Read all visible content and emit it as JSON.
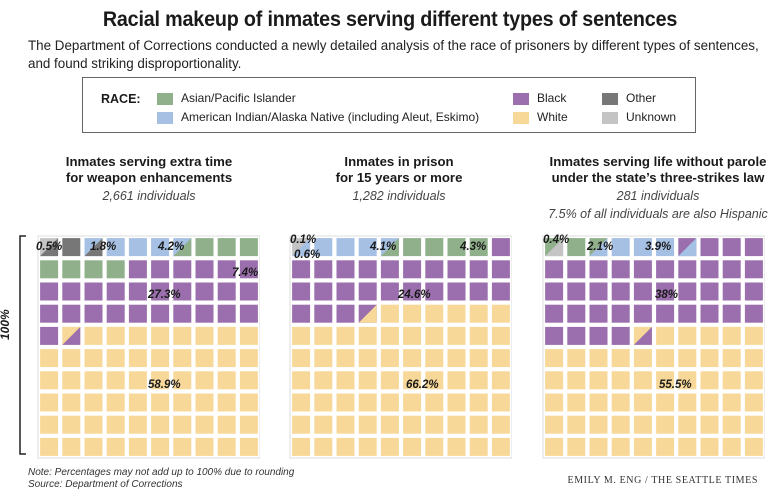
{
  "title": "Racial makeup of inmates serving different types of sentences",
  "subtitle": "The Department of Corrections conducted a newly detailed analysis of the race of prisoners by different types of sentences, and found striking disproportionality.",
  "legend": {
    "title": "RACE:",
    "items": [
      {
        "label": "Asian/Pacific Islander",
        "color": "#8fb08a"
      },
      {
        "label": "American Indian/Alaska Native (including Aleut, Eskimo)",
        "color": "#a6c0e4"
      },
      {
        "label": "Black",
        "color": "#9b6fad"
      },
      {
        "label": "White",
        "color": "#f7d898"
      },
      {
        "label": "Other",
        "color": "#777777"
      },
      {
        "label": "Unknown",
        "color": "#c4c4c4"
      }
    ]
  },
  "y_axis_label": "100%",
  "chart_data": [
    {
      "type": "waffle",
      "title": "Inmates serving extra time for weapon enhancements",
      "title_lines": [
        "Inmates serving extra time",
        "for weapon enhancements"
      ],
      "subtitle_lines": [
        "2,661 individuals"
      ],
      "categories": [
        "Unknown",
        "Other",
        "American Indian/Alaska Native",
        "Asian/Pacific Islander",
        "Black",
        "White"
      ],
      "values": [
        0.5,
        1.8,
        4.2,
        7.4,
        27.3,
        58.9
      ],
      "labels": [
        "0.5%",
        "1.8%",
        "4.2%",
        "7.4%",
        "27.3%",
        "58.9%"
      ]
    },
    {
      "type": "waffle",
      "title": "Inmates in prison for 15 years or more",
      "title_lines": [
        "Inmates in prison",
        "for 15 years or more"
      ],
      "subtitle_lines": [
        "1,282 individuals"
      ],
      "categories": [
        "Other",
        "Unknown",
        "American Indian/Alaska Native",
        "Asian/Pacific Islander",
        "Black",
        "White"
      ],
      "values": [
        0.1,
        0.6,
        4.1,
        4.3,
        24.6,
        66.2
      ],
      "labels": [
        "0.1%",
        "0.6%",
        "4.1%",
        "4.3%",
        "24.6%",
        "66.2%"
      ]
    },
    {
      "type": "waffle",
      "title": "Inmates serving life without parole under the state's three-strikes law",
      "title_lines": [
        "Inmates serving life without parole",
        "under the state’s three-strikes law"
      ],
      "subtitle_lines": [
        "281 individuals",
        "7.5% of all individuals are also Hispanic"
      ],
      "categories": [
        "Unknown",
        "Asian/Pacific Islander",
        "American Indian/Alaska Native",
        "Black",
        "White"
      ],
      "values": [
        0.4,
        2.1,
        3.9,
        38,
        55.5
      ],
      "labels": [
        "0.4%",
        "2.1%",
        "3.9%",
        "38%",
        "55.5%"
      ]
    }
  ],
  "notes": [
    "Note: Percentages may not add up to 100% due to rounding",
    "Source: Department of Corrections"
  ],
  "credit": "EMILY M. ENG / THE SEATTLE TIMES"
}
